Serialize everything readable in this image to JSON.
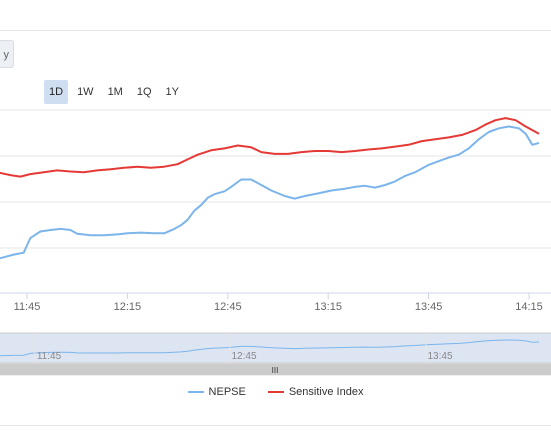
{
  "range_selector": {
    "partial_label": "y",
    "buttons": [
      {
        "label": "1D",
        "active": true
      },
      {
        "label": "1W",
        "active": false
      },
      {
        "label": "1M",
        "active": false
      },
      {
        "label": "1Q",
        "active": false
      },
      {
        "label": "1Y",
        "active": false
      }
    ]
  },
  "navigator": {
    "ticks": [
      "11:45",
      "12:45",
      "13:45"
    ],
    "handle_glyph": "III"
  },
  "chart_data": {
    "type": "line",
    "title": "",
    "xlabel": "",
    "ylabel": "",
    "x_ticks": [
      "11:45",
      "12:15",
      "12:45",
      "13:15",
      "13:45",
      "14:15"
    ],
    "grid": true,
    "legend_placement": "bottom-center",
    "series": [
      {
        "name": "NEPSE",
        "color": "#7cb5ec",
        "points": [
          [
            "11:30",
            0.62
          ],
          [
            "11:33",
            0.78
          ],
          [
            "11:37",
            0.95
          ],
          [
            "11:41",
            1.05
          ],
          [
            "11:44",
            1.1
          ],
          [
            "11:46",
            1.5
          ],
          [
            "11:49",
            1.68
          ],
          [
            "11:52",
            1.72
          ],
          [
            "11:55",
            1.75
          ],
          [
            "11:58",
            1.72
          ],
          [
            "12:00",
            1.62
          ],
          [
            "12:04",
            1.58
          ],
          [
            "12:08",
            1.58
          ],
          [
            "12:12",
            1.6
          ],
          [
            "12:15",
            1.63
          ],
          [
            "12:19",
            1.65
          ],
          [
            "12:23",
            1.63
          ],
          [
            "12:26",
            1.63
          ],
          [
            "12:29",
            1.75
          ],
          [
            "12:31",
            1.85
          ],
          [
            "12:33",
            2.0
          ],
          [
            "12:35",
            2.25
          ],
          [
            "12:37",
            2.4
          ],
          [
            "12:39",
            2.6
          ],
          [
            "12:41",
            2.7
          ],
          [
            "12:44",
            2.78
          ],
          [
            "12:46",
            2.9
          ],
          [
            "12:49",
            3.1
          ],
          [
            "12:52",
            3.1
          ],
          [
            "12:55",
            2.95
          ],
          [
            "12:58",
            2.8
          ],
          [
            "13:02",
            2.65
          ],
          [
            "13:05",
            2.58
          ],
          [
            "13:08",
            2.65
          ],
          [
            "13:12",
            2.72
          ],
          [
            "13:16",
            2.8
          ],
          [
            "13:20",
            2.85
          ],
          [
            "13:23",
            2.9
          ],
          [
            "13:26",
            2.93
          ],
          [
            "13:29",
            2.88
          ],
          [
            "13:32",
            2.95
          ],
          [
            "13:35",
            3.05
          ],
          [
            "13:38",
            3.2
          ],
          [
            "13:41",
            3.3
          ],
          [
            "13:45",
            3.5
          ],
          [
            "13:48",
            3.6
          ],
          [
            "13:51",
            3.7
          ],
          [
            "13:54",
            3.78
          ],
          [
            "13:57",
            3.95
          ],
          [
            "14:00",
            4.2
          ],
          [
            "14:03",
            4.4
          ],
          [
            "14:06",
            4.5
          ],
          [
            "14:09",
            4.55
          ],
          [
            "14:12",
            4.5
          ],
          [
            "14:14",
            4.35
          ],
          [
            "14:16",
            4.05
          ],
          [
            "14:18",
            4.1
          ]
        ]
      },
      {
        "name": "Sensitive Index",
        "color": "#e53935",
        "points": [
          [
            "11:30",
            3.05
          ],
          [
            "11:33",
            3.2
          ],
          [
            "11:36",
            3.3
          ],
          [
            "11:40",
            3.22
          ],
          [
            "11:43",
            3.18
          ],
          [
            "11:46",
            3.25
          ],
          [
            "11:50",
            3.3
          ],
          [
            "11:54",
            3.35
          ],
          [
            "11:58",
            3.32
          ],
          [
            "12:02",
            3.3
          ],
          [
            "12:06",
            3.35
          ],
          [
            "12:10",
            3.38
          ],
          [
            "12:14",
            3.42
          ],
          [
            "12:18",
            3.45
          ],
          [
            "12:22",
            3.42
          ],
          [
            "12:26",
            3.45
          ],
          [
            "12:30",
            3.52
          ],
          [
            "12:33",
            3.65
          ],
          [
            "12:36",
            3.78
          ],
          [
            "12:40",
            3.9
          ],
          [
            "12:44",
            3.95
          ],
          [
            "12:48",
            4.03
          ],
          [
            "12:52",
            3.98
          ],
          [
            "12:55",
            3.85
          ],
          [
            "12:59",
            3.8
          ],
          [
            "13:03",
            3.8
          ],
          [
            "13:07",
            3.85
          ],
          [
            "13:11",
            3.88
          ],
          [
            "13:15",
            3.88
          ],
          [
            "13:19",
            3.85
          ],
          [
            "13:23",
            3.88
          ],
          [
            "13:27",
            3.92
          ],
          [
            "13:31",
            3.95
          ],
          [
            "13:35",
            4.0
          ],
          [
            "13:39",
            4.05
          ],
          [
            "13:43",
            4.15
          ],
          [
            "13:47",
            4.2
          ],
          [
            "13:51",
            4.25
          ],
          [
            "13:55",
            4.32
          ],
          [
            "13:59",
            4.45
          ],
          [
            "14:02",
            4.6
          ],
          [
            "14:05",
            4.72
          ],
          [
            "14:08",
            4.78
          ],
          [
            "14:11",
            4.72
          ],
          [
            "14:14",
            4.55
          ],
          [
            "14:17",
            4.4
          ],
          [
            "14:18",
            4.35
          ]
        ]
      }
    ]
  }
}
